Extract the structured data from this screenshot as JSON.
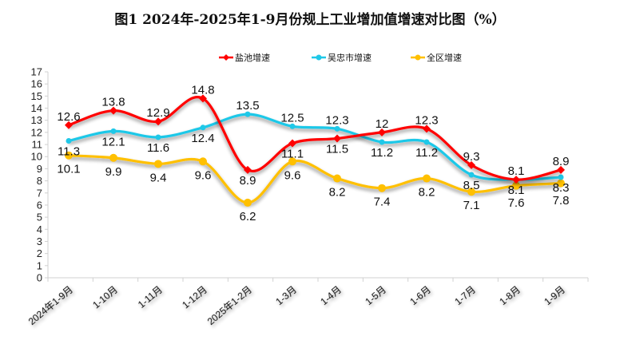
{
  "chart_data": {
    "type": "line",
    "title": "图1 2024年-2025年1-9月份规上工业增加值增速对比图（%）",
    "categories": [
      "2024年1-9月",
      "1-10月",
      "1-11月",
      "1-12月",
      "2025年1-2月",
      "1-3月",
      "1-4月",
      "1-5月",
      "1-6月",
      "1-7月",
      "1-8月",
      "1-9月"
    ],
    "ylim": [
      0,
      17
    ],
    "yticks": [
      0,
      1,
      2,
      3,
      4,
      5,
      6,
      7,
      8,
      9,
      10,
      11,
      12,
      13,
      14,
      15,
      16,
      17
    ],
    "grid": false,
    "legend": "top",
    "series": [
      {
        "name": "盐池增速",
        "color": "#ff0000",
        "marker": "diamond",
        "values": [
          12.6,
          13.8,
          12.9,
          14.8,
          8.9,
          11.1,
          11.5,
          12,
          12.3,
          9.3,
          8.1,
          8.9
        ]
      },
      {
        "name": "吴忠市增速",
        "color": "#1fc8e8",
        "marker": "circle",
        "values": [
          11.3,
          12.1,
          11.6,
          12.4,
          13.5,
          12.5,
          12.3,
          11.2,
          11.2,
          8.5,
          8.1,
          8.3
        ]
      },
      {
        "name": "全区增速",
        "color": "#ffc000",
        "marker": "circle",
        "values": [
          10.1,
          9.9,
          9.4,
          9.6,
          6.2,
          9.6,
          8.2,
          7.4,
          8.2,
          7.1,
          7.6,
          7.8
        ]
      }
    ]
  }
}
